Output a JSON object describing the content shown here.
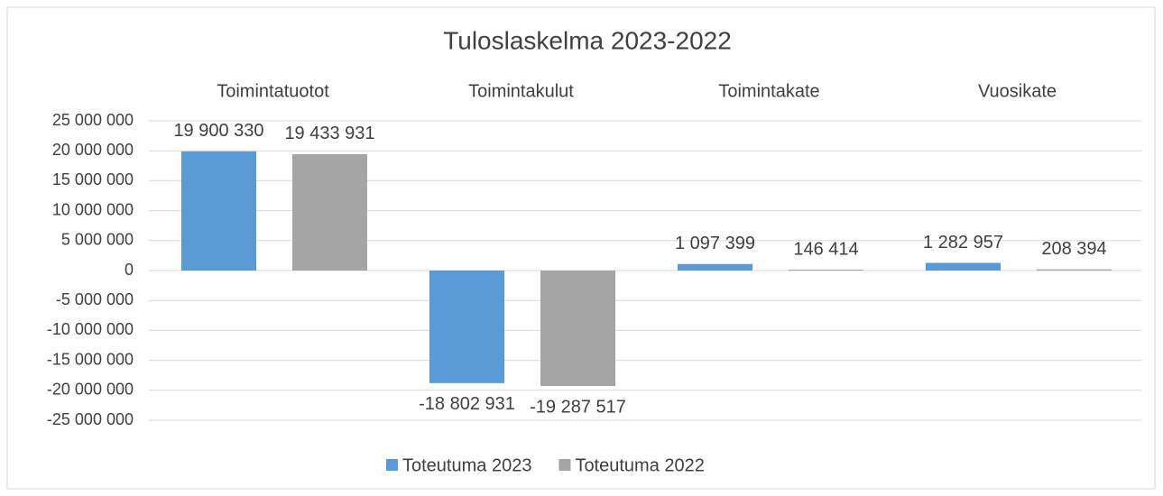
{
  "chart_data": {
    "type": "bar",
    "title": "Tuloslaskelma 2023-2022",
    "categories": [
      "Toimintatuotot",
      "Toimintakulut",
      "Toimintakate",
      "Vuosikate"
    ],
    "series": [
      {
        "name": "Toteutuma 2023",
        "color": "#5b9bd5",
        "values": [
          19900330,
          -18802931,
          1097399,
          1282957
        ],
        "value_labels": [
          "19 900 330",
          "-18 802 931",
          "1 097 399",
          "1 282 957"
        ]
      },
      {
        "name": "Toteutuma 2022",
        "color": "#a5a5a5",
        "values": [
          19433931,
          -19287517,
          146414,
          208394
        ],
        "value_labels": [
          "19 433 931",
          "-19 287 517",
          "146 414",
          "208 394"
        ]
      }
    ],
    "ylim": [
      -25000000,
      25000000
    ],
    "yticks": [
      {
        "value": -25000000,
        "label": "-25 000 000"
      },
      {
        "value": -20000000,
        "label": "-20 000 000"
      },
      {
        "value": -15000000,
        "label": "-15 000 000"
      },
      {
        "value": -10000000,
        "label": "-10 000 000"
      },
      {
        "value": -5000000,
        "label": "-5 000 000"
      },
      0,
      {
        "value": 5000000,
        "label": "5 000 000"
      },
      {
        "value": 10000000,
        "label": "10 000 000"
      },
      {
        "value": 15000000,
        "label": "15 000 000"
      },
      {
        "value": 20000000,
        "label": "20 000 000"
      },
      {
        "value": 25000000,
        "label": "25 000 000"
      }
    ],
    "grid": true,
    "legend": "bottom"
  }
}
